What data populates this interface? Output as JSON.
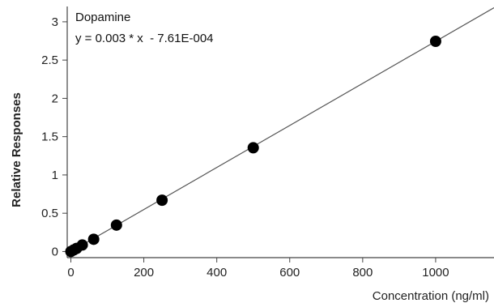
{
  "chart_data": {
    "type": "scatter",
    "title": "",
    "xlabel": "Concentration (ng/ml)",
    "ylabel": "Relative Responses",
    "xlim": [
      -10,
      1160
    ],
    "ylim": [
      -0.08,
      3.2
    ],
    "xticks": [
      0,
      200,
      400,
      600,
      800,
      1000
    ],
    "yticks": [
      0,
      0.5,
      1,
      1.5,
      2,
      2.5,
      3
    ],
    "xtick_labels": [
      "0",
      "200",
      "400",
      "600",
      "800",
      "1000"
    ],
    "ytick_labels": [
      "0",
      "0.5",
      "1",
      "1.5",
      "2",
      "2.5",
      "3"
    ],
    "grid": false,
    "series": [
      {
        "name": "Dopamine",
        "x": [
          0,
          7.8,
          15.6,
          31.25,
          62.5,
          125,
          250,
          500,
          1000
        ],
        "y": [
          0.0,
          0.02,
          0.04,
          0.085,
          0.16,
          0.345,
          0.67,
          1.355,
          2.745
        ],
        "color": "#000000"
      }
    ],
    "fit": {
      "slope": 0.002745,
      "intercept": -0.000761,
      "x_range": [
        0,
        1160
      ],
      "color": "#555555"
    },
    "annotations": {
      "compound": "Dopamine",
      "equation": "y = 0.003 * x  - 7.61E-004"
    }
  }
}
